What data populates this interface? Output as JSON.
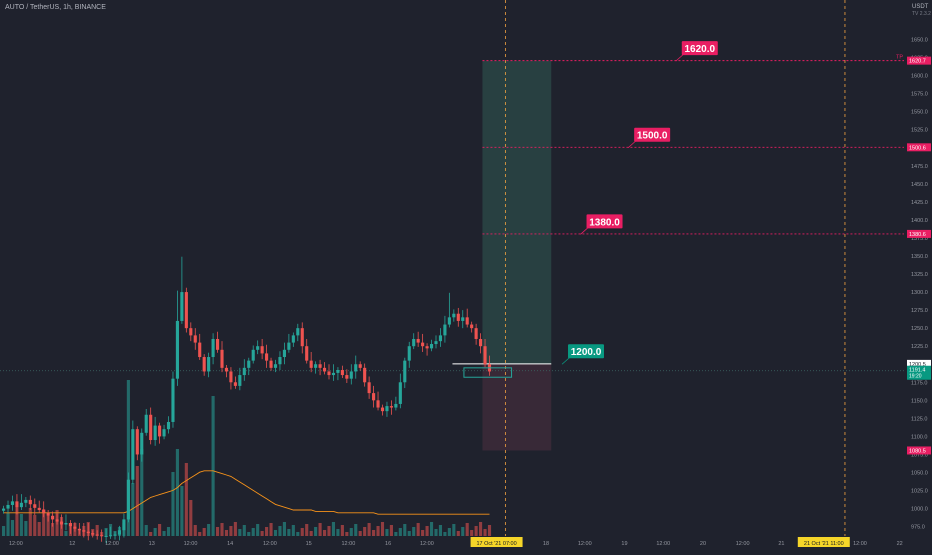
{
  "header": {
    "symbol": "AUTO / TetherUS, 1h, BINANCE",
    "currency": "USDT",
    "scale_note": "TV 2.3.2"
  },
  "colors": {
    "background": "#1f222d",
    "up": "#26a69a",
    "down": "#ef5350",
    "label_red": "#e91e63",
    "label_teal": "#089981",
    "date_highlight": "#f6d629",
    "profit_zone": "#2a4545",
    "loss_zone": "#3d2a3a",
    "ma_line": "#f7931a"
  },
  "chart_data": {
    "type": "candlestick",
    "ylim": [
      962,
      1677
    ],
    "y_ticks": [
      975,
      1000,
      1025,
      1050,
      1075,
      1100,
      1125,
      1150,
      1175,
      1200,
      1225,
      1250,
      1275,
      1300,
      1325,
      1350,
      1375,
      1400,
      1425,
      1450,
      1475,
      1500,
      1525,
      1550,
      1575,
      1600,
      1625,
      1650
    ],
    "x_labels": [
      {
        "t": 0.018,
        "label": "12:00"
      },
      {
        "t": 0.082,
        "label": "12"
      },
      {
        "t": 0.127,
        "label": "12:00"
      },
      {
        "t": 0.172,
        "label": "13"
      },
      {
        "t": 0.216,
        "label": "12:00"
      },
      {
        "t": 0.261,
        "label": "14"
      },
      {
        "t": 0.306,
        "label": "12:00"
      },
      {
        "t": 0.35,
        "label": "15"
      },
      {
        "t": 0.395,
        "label": "12:00"
      },
      {
        "t": 0.44,
        "label": "16"
      },
      {
        "t": 0.484,
        "label": "12:00"
      },
      {
        "t": 0.619,
        "label": "18"
      },
      {
        "t": 0.663,
        "label": "12:00"
      },
      {
        "t": 0.708,
        "label": "19"
      },
      {
        "t": 0.752,
        "label": "12:00"
      },
      {
        "t": 0.797,
        "label": "20"
      },
      {
        "t": 0.842,
        "label": "12:00"
      },
      {
        "t": 0.886,
        "label": "21"
      },
      {
        "t": 0.975,
        "label": "12:00"
      },
      {
        "t": 1.02,
        "label": "22"
      }
    ],
    "highlight_dates": [
      {
        "t": 0.563,
        "label": "17 Oct '21 07:00"
      },
      {
        "t": 0.934,
        "label": "21 Oct '21 11:00"
      }
    ],
    "price_close": [
      1000,
      1005,
      1010,
      1002,
      1008,
      1012,
      1006,
      1001,
      998,
      994,
      990,
      985,
      982,
      978,
      980,
      975,
      972,
      970,
      968,
      966,
      964,
      963,
      962,
      962,
      963,
      964,
      970,
      985,
      1040,
      1110,
      1075,
      1105,
      1130,
      1095,
      1115,
      1100,
      1110,
      1120,
      1180,
      1260,
      1300,
      1250,
      1240,
      1230,
      1210,
      1190,
      1210,
      1235,
      1220,
      1195,
      1190,
      1175,
      1170,
      1185,
      1195,
      1205,
      1220,
      1225,
      1215,
      1205,
      1195,
      1200,
      1210,
      1220,
      1230,
      1240,
      1250,
      1225,
      1205,
      1195,
      1200,
      1195,
      1190,
      1185,
      1188,
      1192,
      1185,
      1180,
      1190,
      1200,
      1195,
      1175,
      1160,
      1150,
      1140,
      1135,
      1142,
      1140,
      1145,
      1175,
      1205,
      1225,
      1235,
      1230,
      1225,
      1222,
      1228,
      1232,
      1240,
      1255,
      1265,
      1270,
      1260,
      1265,
      1255,
      1250,
      1235,
      1225,
      1200,
      1190
    ],
    "ma_values": [
      975,
      975,
      975,
      975,
      975,
      975,
      975,
      975,
      975,
      975,
      975,
      975,
      975,
      975,
      975,
      975,
      975,
      975,
      975,
      975,
      975,
      975,
      975,
      975,
      975,
      975,
      975,
      975,
      976,
      978,
      980,
      982,
      984,
      986,
      987,
      988,
      989,
      990,
      991,
      993,
      996,
      998,
      1000,
      1002,
      1004,
      1005,
      1005,
      1005,
      1004,
      1003,
      1002,
      1001,
      999,
      997,
      995,
      993,
      991,
      989,
      987,
      985,
      983,
      981,
      980,
      979,
      978,
      977,
      977,
      977,
      977,
      977,
      976,
      976,
      976,
      976,
      976,
      975,
      975,
      975,
      975,
      975,
      975,
      975,
      975,
      975,
      974,
      974,
      974,
      974,
      974,
      974,
      974,
      974,
      974,
      974,
      974,
      974,
      974,
      974,
      974,
      974,
      974,
      974,
      974,
      974,
      974,
      974,
      974,
      974,
      974,
      974
    ],
    "horizontal_levels": [
      {
        "price": 1620.7,
        "label": "1620.7",
        "color": "#e91e63",
        "line": "dotted"
      },
      {
        "price": 1500.6,
        "label": "1500.6",
        "color": "#e91e63",
        "line": "dotted"
      },
      {
        "price": 1380.6,
        "label": "1380.6",
        "color": "#e91e63",
        "line": "dotted"
      },
      {
        "price": 1200.5,
        "label": "1200.5",
        "color": "#ffffff",
        "line": "solid"
      },
      {
        "price": 1080.5,
        "label": "1080.5",
        "color": "#e91e63",
        "line": "none"
      }
    ],
    "current_price": {
      "price": 1191,
      "label": "1191.4",
      "sub": "19:20"
    },
    "tp_marker": {
      "price": 1620.7,
      "label": "TP"
    },
    "callouts": [
      {
        "label": "1620.0",
        "price": 1620,
        "t": 0.773,
        "color": "#e91e63"
      },
      {
        "label": "1500.0",
        "price": 1500,
        "t": 0.719,
        "color": "#e91e63"
      },
      {
        "label": "1380.0",
        "price": 1380,
        "t": 0.665,
        "color": "#e91e63"
      },
      {
        "label": "1200.0",
        "price": 1200,
        "t": 0.644,
        "color": "#089981"
      }
    ],
    "position": {
      "entry": 1200.5,
      "target": 1620.7,
      "stop": 1080.5,
      "t_start": 0.547,
      "t_end": 0.625
    },
    "entry_box": {
      "price_top": 1195,
      "price_bottom": 1182,
      "t_start": 0.526,
      "t_end": 0.58
    },
    "vlines": [
      0.573,
      0.958
    ]
  }
}
